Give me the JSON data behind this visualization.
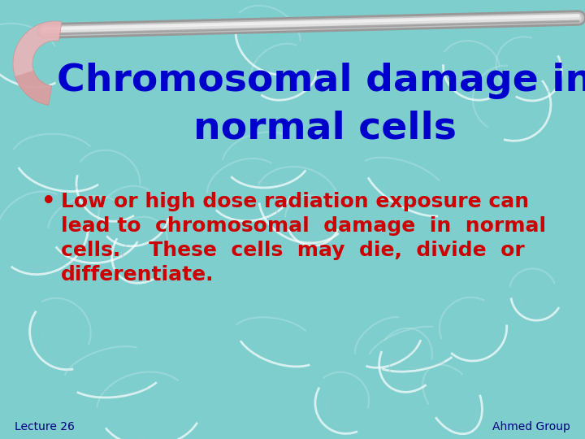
{
  "bg_color": "#7ecece",
  "title_line1": "Chromosomal damage in",
  "title_line2": "normal cells",
  "title_color": "#0000cc",
  "title_fontsize": 34,
  "bullet_text_line1": "Low or high dose radiation exposure can",
  "bullet_text_line2": "lead to  chromosomal  damage  in  normal",
  "bullet_text_line3": "cells.    These  cells  may  die,  divide  or",
  "bullet_text_line4": "differentiate.",
  "bullet_color": "#cc0000",
  "bullet_fontsize": 18,
  "footer_left": "Lecture 26",
  "footer_right": "Ahmed Group",
  "footer_color": "#000080",
  "footer_fontsize": 10,
  "hook_color": "#e8b4b8",
  "hook_shadow_color": "#a09090",
  "bar_main_color": "#a8a8a8",
  "bar_highlight_color": "#e0e0e0",
  "bar_shadow_color": "#606060",
  "bg_shape_color_white": "#c8eaea",
  "bg_shape_color_dark": "#90cccc"
}
